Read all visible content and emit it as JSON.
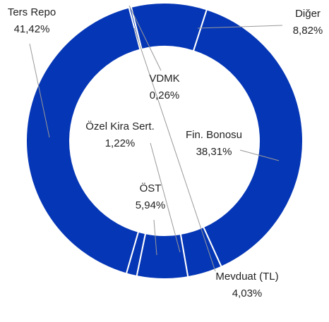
{
  "chart_data": {
    "type": "donut",
    "categories": [
      "Ters Repo",
      "VDMK",
      "Diğer",
      "Fin. Bonosu",
      "Mevduat (TL)",
      "ÖST",
      "Özel Kira Sert."
    ],
    "values": [
      41.42,
      0.26,
      8.82,
      38.31,
      4.03,
      5.94,
      1.22
    ],
    "value_labels": [
      "41,42%",
      "0,26%",
      "8,82%",
      "38,31%",
      "4,03%",
      "5,94%",
      "1,22%"
    ],
    "color": "#0536b5"
  }
}
